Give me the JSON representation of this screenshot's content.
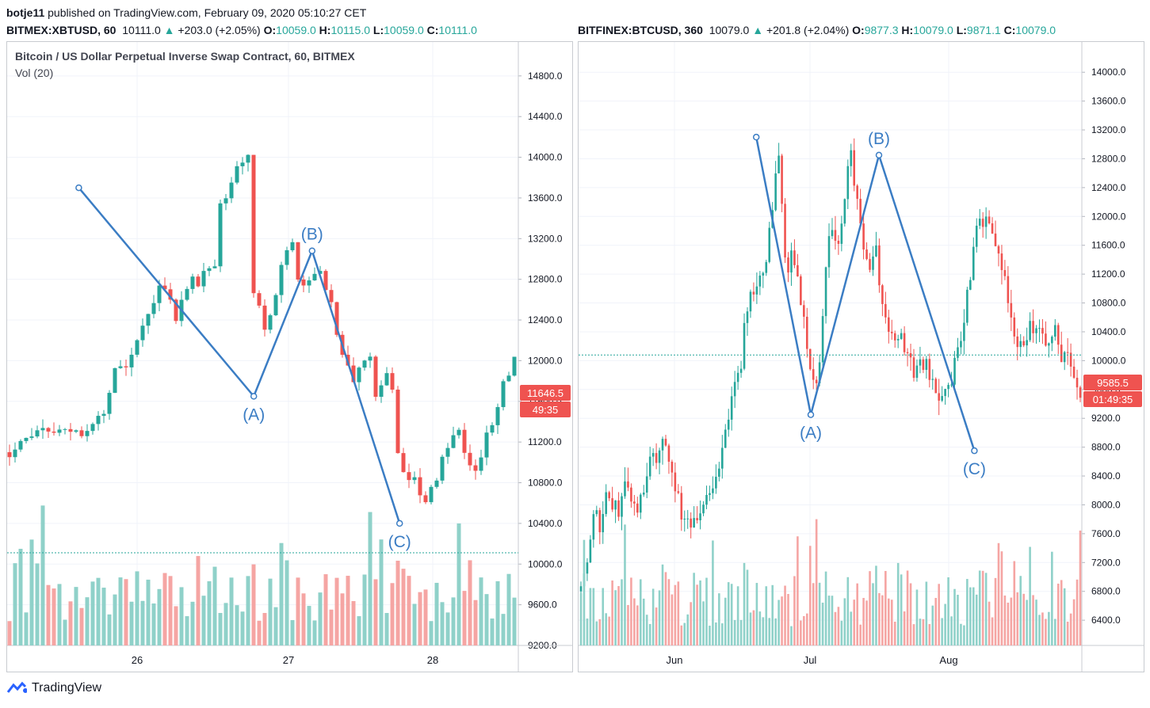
{
  "header": {
    "user": "botje11",
    "published": "published on TradingView.com, February 09, 2020 05:10:27 CET"
  },
  "left": {
    "symbol": "BITMEX:XBTUSD, 60",
    "last": "10111.0",
    "change": "+203.0 (+2.05%)",
    "o_label": "O:",
    "o": "10059.0",
    "h_label": "H:",
    "h": "10115.0",
    "l_label": "L:",
    "l": "10059.0",
    "c_label": "C:",
    "c": "10111.0",
    "title": "Bitcoin / US Dollar Perpetual Inverse Swap Contract, 60, BITMEX",
    "vol": "Vol (20)",
    "price_tag": "11646.5",
    "time_tag": "49:35"
  },
  "right": {
    "symbol": "BITFINEX:BTCUSD, 360",
    "last": "10079.0",
    "change": "+201.8 (+2.04%)",
    "o_label": "O:",
    "o": "9877.3",
    "h_label": "H:",
    "h": "10079.0",
    "l_label": "L:",
    "l": "9871.1",
    "c_label": "C:",
    "c": "10079.0",
    "price_tag": "9585.5",
    "time_tag": "01:49:35"
  },
  "footer": {
    "brand": "TradingView"
  },
  "colors": {
    "up": "#26a69a",
    "down": "#ef5350",
    "wave": "#3b7dc4",
    "up_vol": "#8fd1c9",
    "down_vol": "#f5a5a3"
  },
  "chart_data": [
    {
      "type": "candlestick",
      "title": "Bitcoin / US Dollar Perpetual Inverse Swap Contract, 60, BITMEX",
      "ylim": [
        9200,
        14900
      ],
      "y_ticks": [
        "14800.0",
        "14400.0",
        "14000.0",
        "13600.0",
        "13200.0",
        "12800.0",
        "12400.0",
        "12000.0",
        "11600.0",
        "11200.0",
        "10800.0",
        "10400.0",
        "10000.0",
        "9600.0",
        "9200.0"
      ],
      "x_ticks": [
        "26",
        "27",
        "28"
      ],
      "dashed_line_value": 10111,
      "price_path": [
        11100,
        11180,
        11230,
        11260,
        11290,
        11300,
        11280,
        11320,
        11330,
        11310,
        11300,
        11340,
        11320,
        11300,
        11360,
        11330,
        11400,
        11500,
        11700,
        11900,
        11950,
        11900,
        12100,
        12250,
        12350,
        12500,
        12600,
        12700,
        12650,
        12600,
        12450,
        12650,
        12750,
        12800,
        12750,
        12850,
        12900,
        12950,
        13500,
        13550,
        13700,
        13950,
        14000,
        14000,
        12700,
        12500,
        12300,
        12450,
        12600,
        12900,
        13050,
        13150,
        12850,
        12750,
        12800,
        12850,
        12880,
        12750,
        12550,
        12300,
        12000,
        11900,
        11800,
        11900,
        11950,
        12050,
        11600,
        11800,
        11900,
        11700,
        11100,
        10950,
        10800,
        10900,
        10700,
        10600,
        10750,
        10800,
        11000,
        11200,
        11300,
        11350,
        11050,
        11000,
        10900,
        11100,
        11250,
        11400,
        11600,
        11800,
        11900,
        12000
      ]
    },
    {
      "type": "candlestick",
      "title": "BITFINEX:BTCUSD, 360",
      "ylim": [
        6050,
        14200
      ],
      "y_ticks": [
        "14000.0",
        "13600.0",
        "13200.0",
        "12800.0",
        "12400.0",
        "12000.0",
        "11600.0",
        "11200.0",
        "10800.0",
        "10400.0",
        "10000.0",
        "9600.0",
        "9200.0",
        "8800.0",
        "8400.0",
        "8000.0",
        "7600.0",
        "7200.0",
        "6800.0",
        "6400.0"
      ],
      "x_ticks": [
        "Jun",
        "Jul",
        "Aug"
      ],
      "dashed_line_value": 10079,
      "price_path": [
        6800,
        7300,
        8000,
        7600,
        8200,
        8000,
        7900,
        8300,
        8100,
        8000,
        8200,
        8800,
        8600,
        8900,
        8600,
        8200,
        7800,
        7800,
        7700,
        8000,
        8100,
        8300,
        8800,
        9200,
        9600,
        10000,
        10800,
        11000,
        11200,
        11400,
        12200,
        13000,
        11200,
        11500,
        11000,
        10500,
        9800,
        9500,
        11000,
        11800,
        11500,
        12000,
        13000,
        12200,
        11700,
        11300,
        11700,
        10800,
        10500,
        10200,
        10300,
        10100,
        9800,
        10000,
        9900,
        9600,
        9500,
        9600,
        9800,
        10100,
        10700,
        11300,
        11900,
        12000,
        11900,
        11600,
        11200,
        10800,
        10300,
        10200,
        10500,
        10400,
        10300,
        10200,
        10400,
        10100,
        10000,
        9700,
        9600
      ]
    }
  ],
  "waves_left": {
    "labels": [
      "(A)",
      "(B)",
      "(C)"
    ],
    "points": [
      {
        "day": 25.6,
        "price": 13700
      },
      {
        "day": 26.8,
        "price": 11650
      },
      {
        "day": 27.2,
        "price": 13080
      },
      {
        "day": 27.8,
        "price": 10400
      }
    ]
  },
  "waves_right": {
    "labels": [
      "(A)",
      "(B)",
      "(C)"
    ],
    "points": [
      {
        "month": 5.6,
        "price": 13100
      },
      {
        "month": 6.0,
        "price": 9250
      },
      {
        "month": 6.5,
        "price": 12850
      },
      {
        "month": 7.2,
        "price": 8750
      }
    ]
  }
}
